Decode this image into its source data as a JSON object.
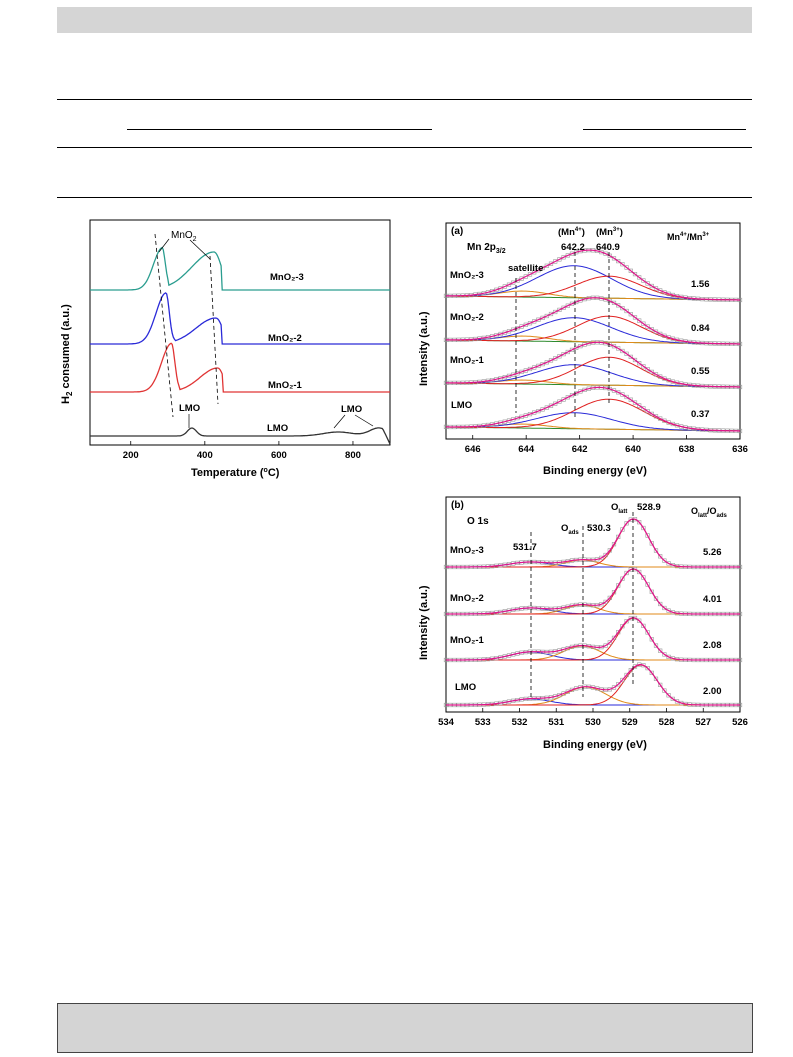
{
  "figures": {
    "tpr": {
      "ylabel_main": "H",
      "ylabel_sub": "2",
      "ylabel_rest": " consumed (a.u.)",
      "xlabel_main": "Temperature (",
      "xlabel_sup": "o",
      "xlabel_rest": "C)",
      "x_ticks": [
        "200",
        "400",
        "600",
        "800"
      ],
      "annotation_mno2_main": "MnO",
      "annotation_mno2_sub": "2",
      "annotation_lmo_1": "LMO",
      "annotation_lmo_2": "LMO",
      "series_labels": [
        "MnO₂-3",
        "MnO₂-2",
        "MnO₂-1",
        "LMO"
      ]
    },
    "xps_mn": {
      "panel": "(a)",
      "spectrum_main": "Mn 2p",
      "spectrum_sub": "3/2",
      "satellite": "satellite",
      "mn4_main": "(Mn",
      "mn4_sup": "4+",
      "mn4_close": ")",
      "mn3_main": "(Mn",
      "mn3_sup": "3+",
      "mn3_close": ")",
      "peak_mn4": "642.2",
      "peak_mn3": "640.9",
      "ratio_a": "Mn",
      "ratio_a_sup": "4+",
      "ratio_b": "/Mn",
      "ratio_b_sup": "3+",
      "sample_labels": [
        "MnO₂-3",
        "MnO₂-2",
        "MnO₂-1",
        "LMO"
      ],
      "ratios": [
        "1.56",
        "0.84",
        "0.55",
        "0.37"
      ],
      "x_ticks": [
        "646",
        "644",
        "642",
        "640",
        "638",
        "636"
      ],
      "ylabel": "Intensity (a.u.)",
      "xlabel": "Binding energy (eV)"
    },
    "xps_o": {
      "panel": "(b)",
      "spectrum": "O 1s",
      "o_latt": "O",
      "o_latt_sub": "latt",
      "o_ads": "O",
      "o_ads_sub": "ads",
      "peak_latt": "528.9",
      "peak_ads": "530.3",
      "peak_other": "531.7",
      "ratio_a": "O",
      "ratio_a_sub": "latt",
      "ratio_b": "/O",
      "ratio_b_sub": "ads",
      "sample_labels": [
        "MnO₂-3",
        "MnO₂-2",
        "MnO₂-1",
        "LMO"
      ],
      "ratios": [
        "5.26",
        "4.01",
        "2.08",
        "2.00"
      ],
      "x_ticks": [
        "534",
        "533",
        "532",
        "531",
        "530",
        "529",
        "528",
        "527",
        "526"
      ],
      "ylabel": "Intensity (a.u.)",
      "xlabel": "Binding energy (eV)"
    }
  },
  "chart_data": [
    {
      "type": "line",
      "xlabel": "Temperature (°C)",
      "ylabel": "H2 consumed (a.u.)",
      "xlim": [
        90,
        900
      ],
      "x_ticks": [
        200,
        400,
        600,
        800
      ],
      "series": [
        {
          "name": "MnO₂-3",
          "color": "#2a9d8f",
          "peaks_x": [
            285,
            425
          ]
        },
        {
          "name": "MnO₂-2",
          "color": "#2a2ad8",
          "peaks_x": [
            295,
            430
          ]
        },
        {
          "name": "MnO₂-1",
          "color": "#e03434",
          "peaks_x": [
            310,
            435
          ]
        },
        {
          "name": "LMO",
          "color": "#333333",
          "peaks_x": [
            365,
            870
          ]
        }
      ]
    },
    {
      "type": "line",
      "xlabel": "Binding energy (eV)",
      "ylabel": "Intensity (a.u.)",
      "xlim": [
        647,
        636
      ],
      "x_ticks": [
        646,
        644,
        642,
        640,
        638,
        636
      ],
      "reference_lines_x": [
        644.1,
        642.2,
        640.9
      ],
      "series": [
        {
          "name": "MnO₂-3",
          "ratio": 1.56
        },
        {
          "name": "MnO₂-2",
          "ratio": 0.84
        },
        {
          "name": "MnO₂-1",
          "ratio": 0.55
        },
        {
          "name": "LMO",
          "ratio": 0.37
        }
      ]
    },
    {
      "type": "line",
      "xlabel": "Binding energy (eV)",
      "ylabel": "Intensity (a.u.)",
      "xlim": [
        534,
        526
      ],
      "x_ticks": [
        534,
        533,
        532,
        531,
        530,
        529,
        528,
        527,
        526
      ],
      "reference_lines_x": [
        531.7,
        530.3,
        528.9
      ],
      "series": [
        {
          "name": "MnO₂-3",
          "ratio": 5.26
        },
        {
          "name": "MnO₂-2",
          "ratio": 4.01
        },
        {
          "name": "MnO₂-1",
          "ratio": 2.08
        },
        {
          "name": "LMO",
          "ratio": 2.0
        }
      ]
    }
  ]
}
